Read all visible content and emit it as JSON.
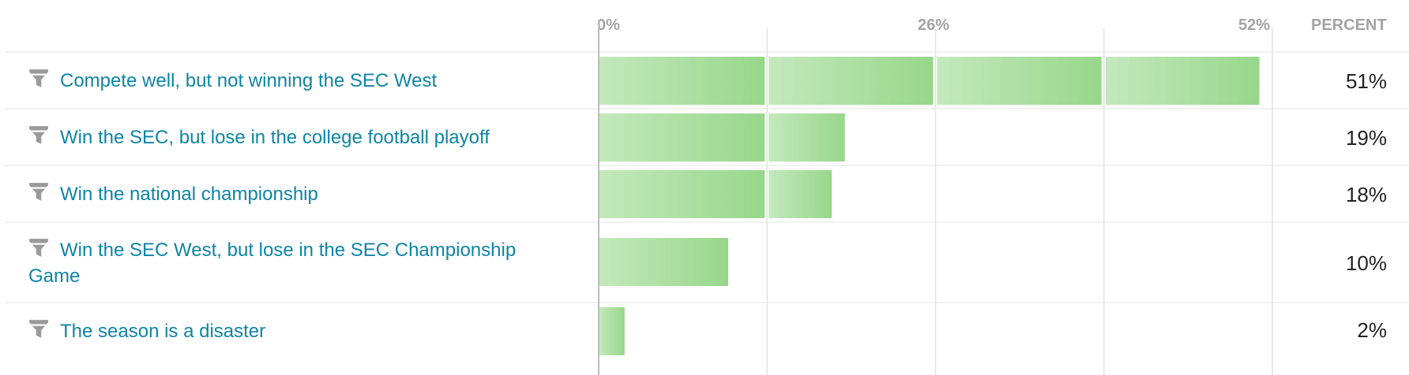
{
  "header": {
    "percent_label": "PERCENT"
  },
  "colors": {
    "bar_light": "#c4e8bd",
    "bar_dark": "#97d78a",
    "label": "#0e85a4",
    "grid": "#e3e3e3"
  },
  "icons": {
    "row_icon": "filter-icon"
  },
  "chart_data": {
    "type": "bar",
    "orientation": "horizontal",
    "categories": [
      "Compete well, but not winning the SEC West",
      "Win the SEC, but lose in the college football playoff",
      "Win the national championship",
      "Win the SEC West, but lose in the SEC Championship Game",
      "The season is a disaster"
    ],
    "values": [
      51,
      19,
      18,
      10,
      2
    ],
    "value_labels": [
      "51%",
      "19%",
      "18%",
      "10%",
      "2%"
    ],
    "axis": {
      "ticks": [
        "0%",
        "26%",
        "52%"
      ],
      "xlim": [
        0,
        52
      ],
      "gridlines": [
        0,
        13,
        26,
        39,
        52
      ]
    },
    "grid": true
  }
}
